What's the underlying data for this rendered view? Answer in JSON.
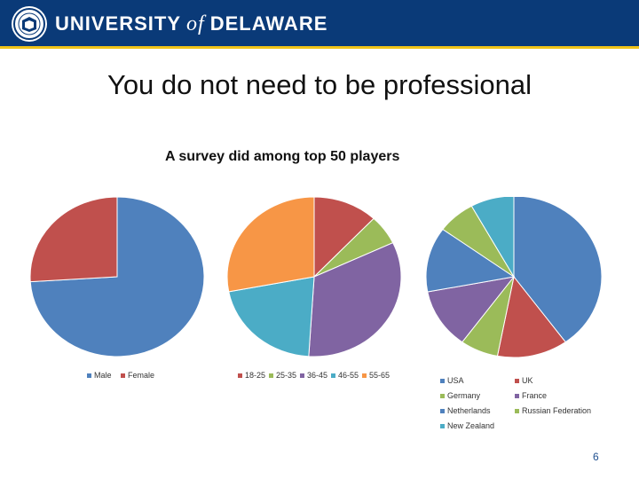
{
  "header": {
    "brand_left": "UNIVERSITY",
    "brand_of": "of",
    "brand_right": "DELAWARE"
  },
  "slide": {
    "title": "You do not need to be professional",
    "subtitle": "A survey did among top 50 players",
    "page_number": "6"
  },
  "chart_data": [
    {
      "type": "pie",
      "title": "",
      "slices": [
        {
          "label": "Male",
          "value": 74,
          "color": "#4f81bd"
        },
        {
          "label": "Female",
          "value": 26,
          "color": "#c0504d"
        }
      ],
      "legend": "bottom"
    },
    {
      "type": "pie",
      "title": "",
      "slices": [
        {
          "label": "18-25",
          "value": 12,
          "color": "#c0504d"
        },
        {
          "label": "25-35",
          "value": 6,
          "color": "#9bbb59"
        },
        {
          "label": "36-45",
          "value": 33,
          "color": "#8064a2"
        },
        {
          "label": "46-55",
          "value": 21,
          "color": "#4bacc6"
        },
        {
          "label": "55-65",
          "value": 28,
          "color": "#f79646"
        }
      ],
      "legend": "bottom"
    },
    {
      "type": "pie",
      "title": "",
      "slices": [
        {
          "label": "USA",
          "value": 40,
          "color": "#4f81bd"
        },
        {
          "label": "UK",
          "value": 13,
          "color": "#c0504d"
        },
        {
          "label": "Germany",
          "value": 7,
          "color": "#9bbb59"
        },
        {
          "label": "France",
          "value": 12,
          "color": "#8064a2"
        },
        {
          "label": "Netherlands",
          "value": 13,
          "color": "#4f81bd"
        },
        {
          "label": "Russian Federation",
          "value": 7,
          "color": "#9bbb59"
        },
        {
          "label": "New Zealand",
          "value": 8,
          "color": "#4bacc6"
        }
      ],
      "legend": "bottom"
    }
  ]
}
